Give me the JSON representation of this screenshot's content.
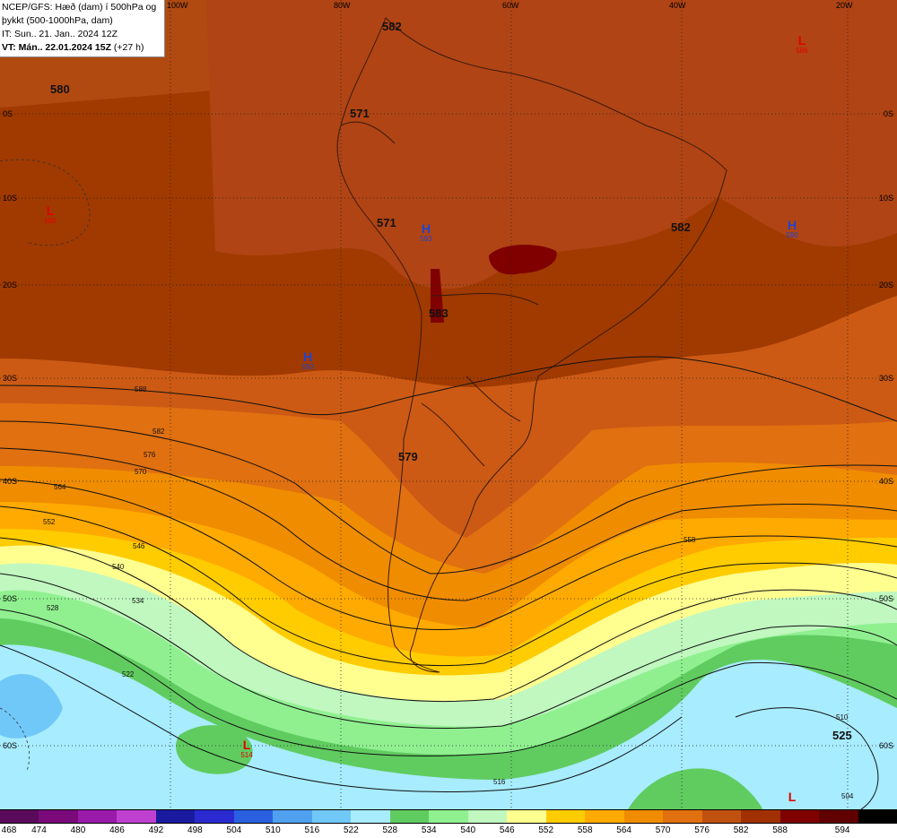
{
  "info": {
    "line1": "NCEP/GFS: Hæð (dam) í 500hPa og",
    "line2": "þykkt (500-1000hPa, dam)",
    "line3": "IT: Sun.. 21. Jan.. 2024 12Z",
    "line4_bold": "VT: Mán.. 22.01.2024 15Z",
    "line4_rest": " (+27 h)"
  },
  "lon_labels": [
    "100W",
    "80W",
    "60W",
    "40W",
    "20W"
  ],
  "lat_labels": [
    "0S",
    "10S",
    "20S",
    "30S",
    "40S",
    "50S",
    "60S"
  ],
  "pressure_centers": [
    {
      "type": "L",
      "value": "589",
      "color": "#e00000"
    },
    {
      "type": "L",
      "value": "586",
      "color": "#e00000"
    },
    {
      "type": "H",
      "value": "593",
      "color": "#2244cc"
    },
    {
      "type": "H",
      "value": "590",
      "color": "#2244cc"
    },
    {
      "type": "H",
      "value": "593",
      "color": "#2244cc"
    },
    {
      "type": "L",
      "value": "514",
      "color": "#e00000"
    },
    {
      "type": "L",
      "value": "",
      "color": "#e00000"
    }
  ],
  "big_labels": [
    "582",
    "580",
    "571",
    "571",
    "582",
    "583",
    "579",
    "525"
  ],
  "contour_labels": [
    "588",
    "582",
    "576",
    "570",
    "564",
    "558",
    "552",
    "546",
    "540",
    "534",
    "528",
    "522",
    "516",
    "510",
    "504"
  ],
  "colorbar": {
    "values": [
      "468",
      "474",
      "480",
      "486",
      "492",
      "498",
      "504",
      "510",
      "516",
      "522",
      "528",
      "534",
      "540",
      "546",
      "552",
      "558",
      "564",
      "570",
      "576",
      "582",
      "588",
      "594"
    ],
    "colors": [
      "#5a0a5a",
      "#7a0a7a",
      "#9a1aaa",
      "#c040d0",
      "#1a1aa0",
      "#2a2ad0",
      "#2a60e0",
      "#50a0f0",
      "#70c8f8",
      "#a8ecff",
      "#60cc60",
      "#90f090",
      "#c0f8c0",
      "#ffff90",
      "#ffcc00",
      "#ffaa00",
      "#f08c00",
      "#e07010",
      "#c05010",
      "#a03000",
      "#800000",
      "#600000"
    ],
    "last_color": "#000000"
  }
}
